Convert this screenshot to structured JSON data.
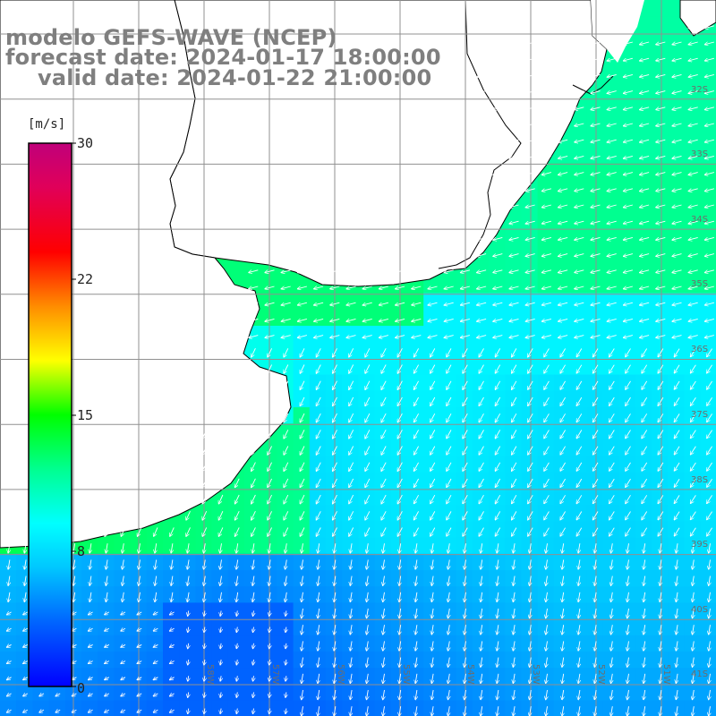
{
  "title": {
    "line1": "modelo GEFS-WAVE (NCEP)",
    "line2": "forecast date: 2024-01-17 18:00:00",
    "line3": "valid date: 2024-01-22 21:00:00"
  },
  "colorbar": {
    "units": "[m/s]",
    "ticks": [
      "30",
      "22",
      "15",
      "8",
      "0"
    ],
    "tick_values": [
      30,
      22,
      15,
      8,
      0
    ],
    "min": 0,
    "max": 30,
    "colors": [
      "#0000ff",
      "#00aaff",
      "#00ffff",
      "#00ff00",
      "#ffff00",
      "#ff8000",
      "#ff0000",
      "#c00080"
    ]
  },
  "grid": {
    "lat_labels": [
      "32S",
      "33S",
      "34S",
      "35S",
      "36S",
      "37S",
      "38S",
      "39S",
      "40S",
      "41S"
    ],
    "lon_labels": [
      "58W",
      "57W",
      "56W",
      "55W",
      "54W",
      "53W",
      "52W",
      "51W"
    ]
  },
  "map": {
    "land_color": "#ffffff",
    "coast_color": "#000000",
    "grid_color": "#909090",
    "arrow_color": "#ffffff",
    "field": "wind speed with direction arrows"
  }
}
